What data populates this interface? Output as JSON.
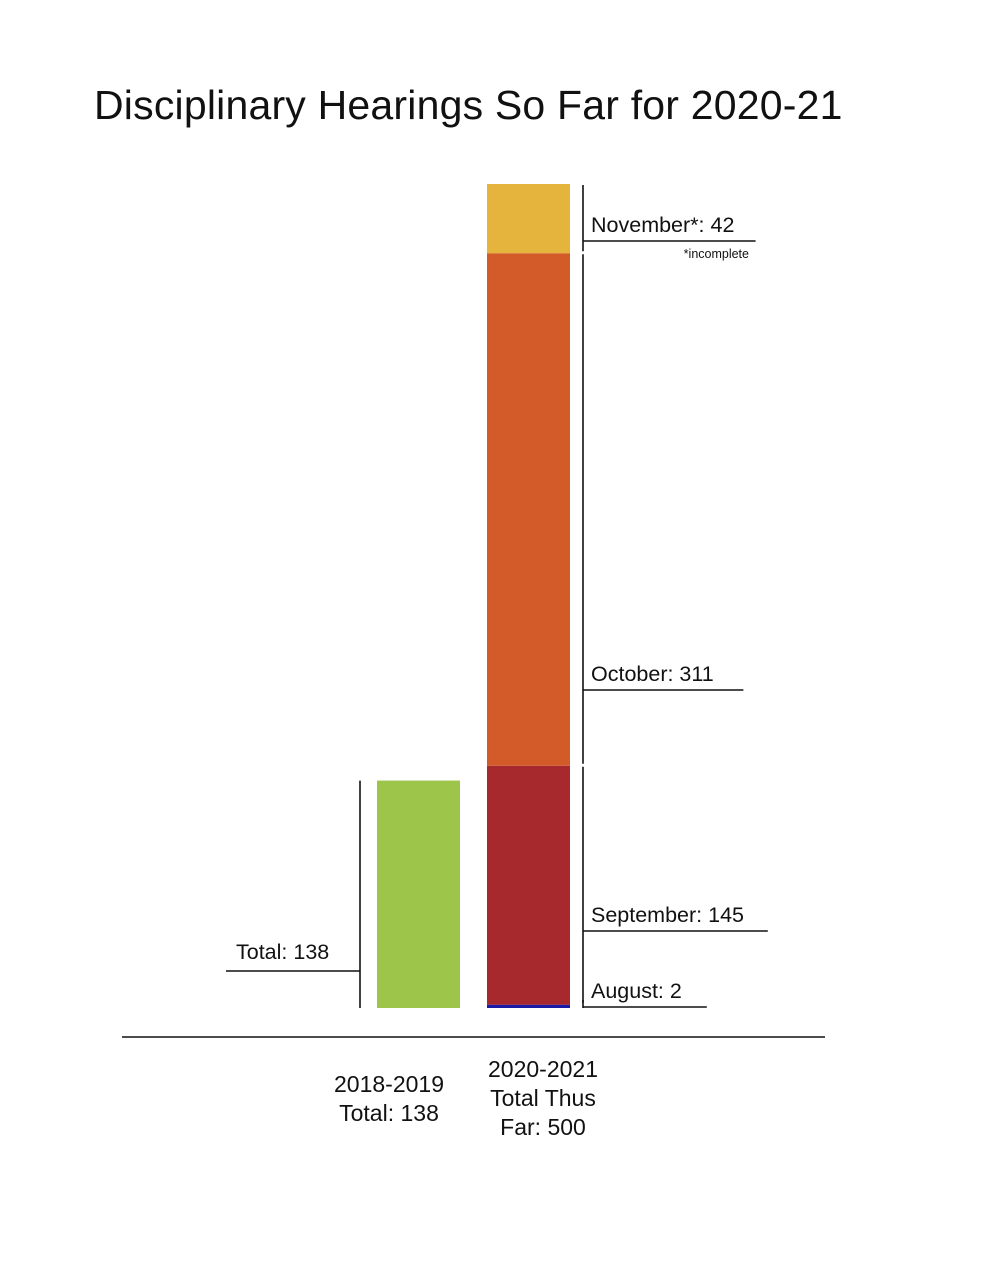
{
  "title": "Disciplinary Hearings So Far for 2020-21",
  "colors": {
    "august": "#1a1aa6",
    "september": "#a7282d",
    "october": "#d35a29",
    "november": "#e4b43c",
    "total_2018_2019": "#9dc54a",
    "ink": "#111111"
  },
  "chart_data": {
    "type": "bar",
    "stacked": true,
    "categories": [
      "2018-2019",
      "2020-2021"
    ],
    "series": [
      {
        "name": "Total",
        "values": [
          138,
          null
        ],
        "color_key": "total_2018_2019"
      },
      {
        "name": "August",
        "values": [
          null,
          2
        ],
        "color_key": "august"
      },
      {
        "name": "September",
        "values": [
          null,
          145
        ],
        "color_key": "september"
      },
      {
        "name": "October",
        "values": [
          null,
          311
        ],
        "color_key": "october"
      },
      {
        "name": "November*",
        "values": [
          null,
          42
        ],
        "color_key": "november"
      }
    ],
    "segment_labels": [
      {
        "text": "Total: 138",
        "category": "2018-2019",
        "side": "left"
      },
      {
        "text": "August: 2",
        "category": "2020-2021",
        "series": "August",
        "side": "right"
      },
      {
        "text": "September: 145",
        "category": "2020-2021",
        "series": "September",
        "side": "right"
      },
      {
        "text": "October: 311",
        "category": "2020-2021",
        "series": "October",
        "side": "right"
      },
      {
        "text": "November*: 42",
        "category": "2020-2021",
        "series": "November*",
        "side": "right",
        "note": "*incomplete"
      }
    ],
    "category_labels": [
      {
        "lines": [
          "2018-2019",
          "Total: 138"
        ]
      },
      {
        "lines": [
          "2020-2021",
          "Total Thus",
          "Far: 500"
        ]
      }
    ],
    "ylim": [
      0,
      500
    ],
    "grid": false,
    "legend": "none"
  }
}
